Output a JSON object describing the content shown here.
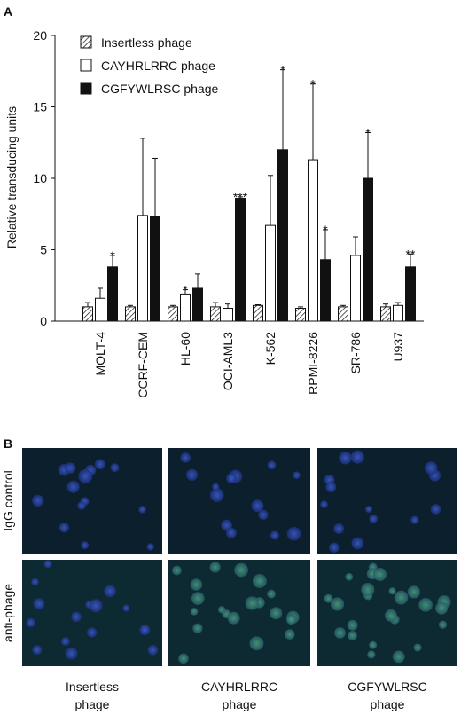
{
  "panel_labels": {
    "a": "A",
    "b": "B"
  },
  "chart_data": {
    "type": "bar",
    "y_label": "Relative transducing units",
    "categories": [
      "MOLT-4",
      "CCRF-CEM",
      "HL-60",
      "OCI-AML3",
      "K-562",
      "RPMI-8226",
      "SR-786",
      "U937"
    ],
    "series": [
      {
        "name": "Insertless phage",
        "color": "hatched",
        "values": [
          1.0,
          1.0,
          1.0,
          1.0,
          1.1,
          0.9,
          1.0,
          1.0
        ],
        "errors": [
          0.3,
          0.1,
          0.1,
          0.3,
          0.05,
          0.1,
          0.1,
          0.2
        ],
        "stars": [
          null,
          null,
          null,
          null,
          null,
          null,
          null,
          null
        ]
      },
      {
        "name": "CAYHRLRRC phage",
        "color": "#ffffff",
        "values": [
          1.6,
          7.4,
          1.9,
          0.9,
          6.7,
          11.3,
          4.6,
          1.1
        ],
        "errors": [
          0.7,
          5.4,
          0.3,
          0.3,
          3.5,
          5.3,
          1.3,
          0.2
        ],
        "stars": [
          null,
          null,
          "*",
          null,
          null,
          "*",
          null,
          null
        ]
      },
      {
        "name": "CGFYWLRSC phage",
        "color": "#111111",
        "values": [
          3.8,
          7.3,
          2.3,
          8.6,
          12.0,
          4.3,
          10.0,
          3.8
        ],
        "errors": [
          0.8,
          4.1,
          1.0,
          0.1,
          5.6,
          2.1,
          3.2,
          0.9
        ],
        "stars": [
          "*",
          null,
          null,
          "***",
          "*",
          "*",
          "*",
          "**"
        ]
      }
    ],
    "ylim": [
      0,
      20
    ],
    "yticks": [
      0,
      5,
      10,
      15,
      20
    ],
    "legend": "upper-left"
  },
  "micrographs": {
    "rows": [
      "IgG control",
      "anti-phage"
    ],
    "columns": [
      "Insertless phage",
      "CAYHRLRRC phage",
      "CGFYWLRSC phage"
    ]
  }
}
